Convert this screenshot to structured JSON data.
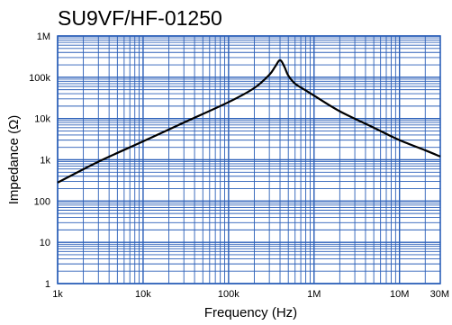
{
  "chart_data": {
    "type": "line",
    "title": "SU9VF/HF-01250",
    "xlabel": "Frequency (Hz)",
    "ylabel": "Impedance (Ω)",
    "x_scale": "log",
    "y_scale": "log",
    "xlim": [
      1000,
      30000000
    ],
    "ylim": [
      1,
      1000000
    ],
    "x_ticks": [
      {
        "value": 1000,
        "label": "1k"
      },
      {
        "value": 10000,
        "label": "10k"
      },
      {
        "value": 100000,
        "label": "100k"
      },
      {
        "value": 1000000,
        "label": "1M"
      },
      {
        "value": 10000000,
        "label": "10M"
      },
      {
        "value": 30000000,
        "label": "30M"
      }
    ],
    "y_ticks": [
      {
        "value": 1,
        "label": "1"
      },
      {
        "value": 10,
        "label": "10"
      },
      {
        "value": 100,
        "label": "100"
      },
      {
        "value": 1000,
        "label": "1k"
      },
      {
        "value": 10000,
        "label": "10k"
      },
      {
        "value": 100000,
        "label": "100k"
      },
      {
        "value": 1000000,
        "label": "1M"
      }
    ],
    "grid": true,
    "grid_color": "#2b5fb8",
    "line_color": "#000000",
    "series": [
      {
        "x": [
          1000,
          3000,
          10000,
          30000,
          100000,
          200000,
          300000,
          350000,
          400000,
          450000,
          500000,
          600000,
          800000,
          1000000,
          2000000,
          5000000,
          10000000,
          20000000,
          30000000
        ],
        "y": [
          280,
          900,
          2800,
          8000,
          25000,
          55000,
          115000,
          180000,
          260000,
          180000,
          110000,
          70000,
          48000,
          36000,
          15000,
          6000,
          3000,
          1700,
          1200
        ]
      }
    ]
  }
}
